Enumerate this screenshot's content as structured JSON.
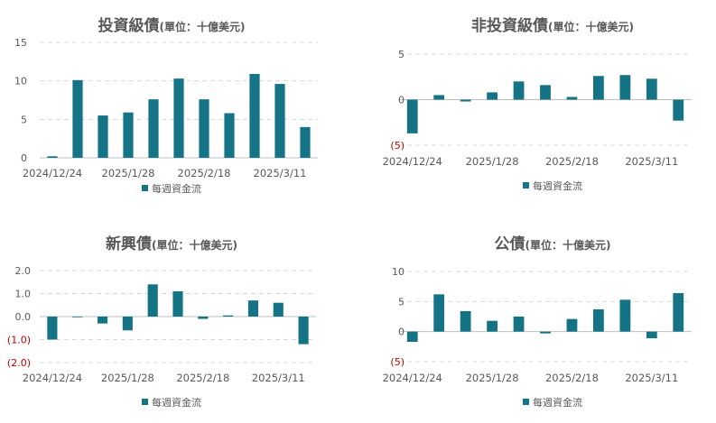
{
  "colors": {
    "bar": "#147385",
    "negative_tick": "#c00000",
    "text": "#595959",
    "grid": "#d9d9d9"
  },
  "legend_label": "每週資金流",
  "chart_data": [
    {
      "type": "bar",
      "title": "投資級債",
      "subtitle": "(單位：十億美元)",
      "x_tick_labels": [
        "2024/12/24",
        "2025/1/28",
        "2025/2/18",
        "2025/3/11"
      ],
      "y_tick_labels": [
        "0",
        "5",
        "10",
        "15"
      ],
      "ylim": [
        0,
        15
      ],
      "values": [
        0.2,
        10.1,
        5.5,
        5.9,
        7.6,
        10.3,
        7.6,
        5.8,
        10.9,
        9.6,
        4.0
      ],
      "grid": true,
      "legend": "bottom",
      "series": [
        {
          "name": "每週資金流",
          "values": [
            0.2,
            10.1,
            5.5,
            5.9,
            7.6,
            10.3,
            7.6,
            5.8,
            10.9,
            9.6,
            4.0
          ]
        }
      ]
    },
    {
      "type": "bar",
      "title": "非投資級債",
      "subtitle": "(單位：十億美元)",
      "x_tick_labels": [
        "2024/12/24",
        "2025/1/28",
        "2025/2/18",
        "2025/3/11"
      ],
      "y_tick_labels": [
        "5",
        "0",
        "(5)"
      ],
      "ylim": [
        -5,
        5
      ],
      "values": [
        -3.7,
        0.5,
        -0.2,
        0.8,
        2.0,
        1.6,
        0.3,
        2.6,
        2.7,
        2.3,
        -2.3
      ],
      "grid": true,
      "legend": "bottom",
      "series": [
        {
          "name": "每週資金流",
          "values": [
            -3.7,
            0.5,
            -0.2,
            0.8,
            2.0,
            1.6,
            0.3,
            2.6,
            2.7,
            2.3,
            -2.3
          ]
        }
      ]
    },
    {
      "type": "bar",
      "title": "新興債",
      "subtitle": "(單位：十億美元)",
      "x_tick_labels": [
        "2024/12/24",
        "2025/1/28",
        "2025/2/18",
        "2025/3/11"
      ],
      "y_tick_labels": [
        "2.0",
        "1.0",
        "0.0",
        "(1.0)",
        "(2.0)"
      ],
      "ylim": [
        -2,
        2
      ],
      "values": [
        -1.0,
        0.0,
        -0.3,
        -0.6,
        1.4,
        1.1,
        -0.1,
        0.05,
        0.7,
        0.6,
        -1.2
      ],
      "grid": true,
      "legend": "bottom",
      "series": [
        {
          "name": "每週資金流",
          "values": [
            -1.0,
            0.0,
            -0.3,
            -0.6,
            1.4,
            1.1,
            -0.1,
            0.05,
            0.7,
            0.6,
            -1.2
          ]
        }
      ]
    },
    {
      "type": "bar",
      "title": "公債",
      "subtitle": "(單位：十億美元)",
      "x_tick_labels": [
        "2024/12/24",
        "2025/1/28",
        "2025/2/18",
        "2025/3/11"
      ],
      "y_tick_labels": [
        "10",
        "5",
        "0",
        "(5)"
      ],
      "ylim": [
        -5,
        10
      ],
      "values": [
        -1.7,
        6.2,
        3.4,
        1.8,
        2.5,
        -0.3,
        2.1,
        3.7,
        5.3,
        -1.1,
        6.4
      ],
      "grid": true,
      "legend": "bottom",
      "series": [
        {
          "name": "每週資金流",
          "values": [
            -1.7,
            6.2,
            3.4,
            1.8,
            2.5,
            -0.3,
            2.1,
            3.7,
            5.3,
            -1.1,
            6.4
          ]
        }
      ]
    }
  ]
}
